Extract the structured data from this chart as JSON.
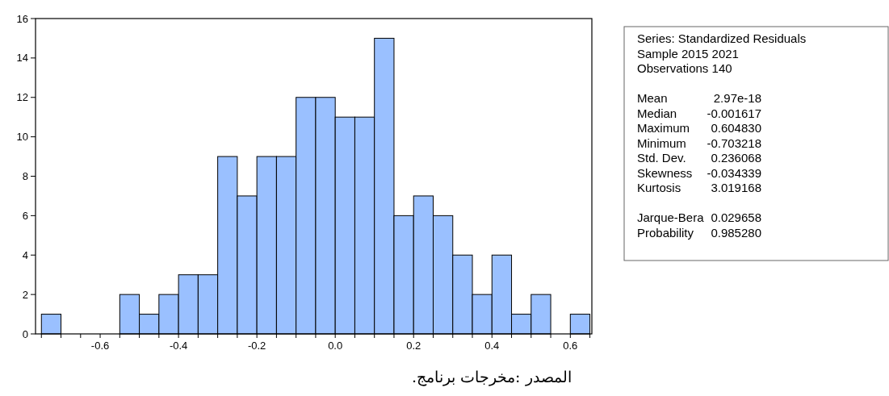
{
  "chart_data": [
    {
      "type": "histogram",
      "bins": [
        -0.75,
        -0.7,
        -0.65,
        -0.6,
        -0.55,
        -0.5,
        -0.45,
        -0.4,
        -0.35,
        -0.3,
        -0.25,
        -0.2,
        -0.15,
        -0.1,
        -0.05,
        0,
        0.05,
        0.1,
        0.15,
        0.2,
        0.25,
        0.3,
        0.35,
        0.4,
        0.45,
        0.5,
        0.55,
        0.6,
        0.65
      ],
      "values": [
        1,
        0,
        0,
        0,
        2,
        1,
        2,
        3,
        3,
        9,
        7,
        9,
        9,
        12,
        12,
        11,
        11,
        15,
        6,
        7,
        6,
        4,
        2,
        4,
        1,
        2,
        0,
        1
      ],
      "color": "#9ac0ff",
      "xlim": [
        -0.765,
        0.655
      ],
      "ylim": [
        0,
        16
      ],
      "xticks": [
        {
          "value": -0.75,
          "label": null
        },
        {
          "value": -0.7,
          "label": null
        },
        {
          "value": -0.65,
          "label": null
        },
        {
          "value": -0.6,
          "label": "-0.6"
        },
        {
          "value": -0.55,
          "label": null
        },
        {
          "value": -0.5,
          "label": null
        },
        {
          "value": -0.45,
          "label": null
        },
        {
          "value": -0.4,
          "label": "-0.4"
        },
        {
          "value": -0.35,
          "label": null
        },
        {
          "value": -0.3,
          "label": null
        },
        {
          "value": -0.25,
          "label": null
        },
        {
          "value": -0.2,
          "label": "-0.2"
        },
        {
          "value": -0.15,
          "label": null
        },
        {
          "value": -0.1,
          "label": null
        },
        {
          "value": -0.05,
          "label": null
        },
        {
          "value": 0,
          "label": "0.0"
        },
        {
          "value": 0.05,
          "label": null
        },
        {
          "value": 0.1,
          "label": null
        },
        {
          "value": 0.15,
          "label": null
        },
        {
          "value": 0.2,
          "label": "0.2"
        },
        {
          "value": 0.25,
          "label": null
        },
        {
          "value": 0.3,
          "label": null
        },
        {
          "value": 0.35,
          "label": null
        },
        {
          "value": 0.4,
          "label": "0.4"
        },
        {
          "value": 0.45,
          "label": null
        },
        {
          "value": 0.5,
          "label": null
        },
        {
          "value": 0.55,
          "label": null
        },
        {
          "value": 0.6,
          "label": "0.6"
        },
        {
          "value": 0.65,
          "label": null
        }
      ],
      "yticks": [
        0,
        2,
        4,
        6,
        8,
        10,
        12,
        14,
        16
      ],
      "grid": false,
      "annotations": [
        "المصدر :مخرجات برنامج."
      ]
    },
    {
      "type": "other",
      "annotations": [
        "Series: Standardized Residuals",
        "Sample 2015 2021",
        "Observations 140"
      ],
      "categories": [
        "Mean",
        "Median",
        "Maximum",
        "Minimum",
        "Std. Dev.",
        "Skewness",
        "Kurtosis",
        null,
        "Jarque-Bera",
        "Probability"
      ],
      "value_labels": [
        "2.97e-18",
        "-0.001617",
        "0.604830",
        "-0.703218",
        "0.236068",
        "-0.034339",
        "3.019168",
        null,
        "0.029658",
        "0.985280"
      ]
    }
  ]
}
